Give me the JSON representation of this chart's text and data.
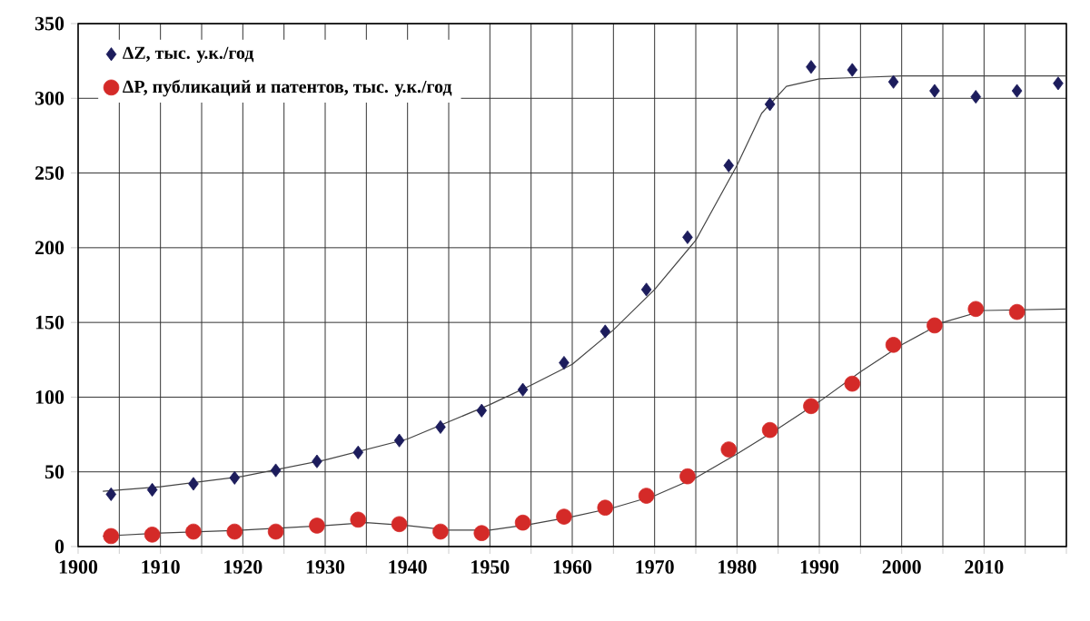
{
  "chart_data": {
    "type": "scatter",
    "xlim": [
      1900,
      2020
    ],
    "ylim": [
      0,
      350
    ],
    "xticks": [
      1900,
      {
        "value": 1905,
        "label": null
      },
      1910,
      {
        "value": 1915,
        "label": null
      },
      1920,
      {
        "value": 1925,
        "label": null
      },
      1930,
      {
        "value": 1935,
        "label": null
      },
      1940,
      {
        "value": 1945,
        "label": null
      },
      1950,
      {
        "value": 1955,
        "label": null
      },
      1960,
      {
        "value": 1965,
        "label": null
      },
      1970,
      {
        "value": 1975,
        "label": null
      },
      1980,
      {
        "value": 1985,
        "label": null
      },
      1990,
      {
        "value": 1995,
        "label": null
      },
      2000,
      {
        "value": 2005,
        "label": null
      },
      2010,
      {
        "value": 2015,
        "label": null
      },
      {
        "value": 2020,
        "label": null
      }
    ],
    "yticks": [
      0,
      50,
      100,
      150,
      200,
      250,
      300,
      350
    ],
    "grid": true,
    "legend": "top left",
    "series": [
      {
        "name": "ΔZ, тыс. у.к./год",
        "color": "#1c1c5c",
        "marker": "diamond",
        "x": [
          1904,
          1909,
          1914,
          1919,
          1924,
          1929,
          1934,
          1939,
          1944,
          1949,
          1954,
          1959,
          1964,
          1969,
          1974,
          1979,
          1984,
          1989,
          1994,
          1999,
          2004,
          2009,
          2014,
          2019
        ],
        "values": [
          35,
          38,
          42,
          46,
          51,
          57,
          63,
          71,
          80,
          91,
          105,
          123,
          144,
          172,
          207,
          255,
          296,
          321,
          319,
          311,
          305,
          301,
          305,
          310
        ]
      },
      {
        "name": "ΔP, публикаций и патентов, тыс. у.к./год",
        "color": "#d42a28",
        "marker": "circle",
        "x": [
          1904,
          1909,
          1914,
          1919,
          1924,
          1929,
          1934,
          1939,
          1944,
          1949,
          1954,
          1959,
          1964,
          1969,
          1974,
          1979,
          1984,
          1989,
          1994,
          1999,
          2004,
          2009,
          2014
        ],
        "values": [
          7,
          8,
          10,
          10,
          10,
          14,
          18,
          15,
          10,
          9,
          16,
          20,
          26,
          34,
          47,
          65,
          78,
          94,
          109,
          135,
          148,
          159,
          157
        ]
      },
      {
        "type": "line",
        "color": "#444444",
        "marker": "none",
        "line_style": "solid",
        "x": [
          1903,
          1910,
          1920,
          1930,
          1940,
          1950,
          1955,
          1960,
          1965,
          1970,
          1975,
          1980,
          1983,
          1986,
          1990,
          1995,
          2000,
          2020
        ],
        "values": [
          37,
          40,
          47,
          58,
          72,
          95,
          108,
          122,
          145,
          172,
          205,
          255,
          290,
          308,
          313,
          314,
          315,
          315
        ]
      },
      {
        "type": "line",
        "color": "#444444",
        "marker": "none",
        "line_style": "solid",
        "x": [
          1903,
          1910,
          1920,
          1930,
          1935,
          1940,
          1945,
          1950,
          1955,
          1960,
          1965,
          1970,
          1975,
          1980,
          1985,
          1990,
          1995,
          2000,
          2005,
          2010,
          2020
        ],
        "values": [
          7,
          9,
          11,
          14,
          16,
          14,
          11,
          11,
          15,
          20,
          26,
          34,
          46,
          62,
          79,
          97,
          117,
          135,
          150,
          158,
          159
        ]
      }
    ]
  }
}
